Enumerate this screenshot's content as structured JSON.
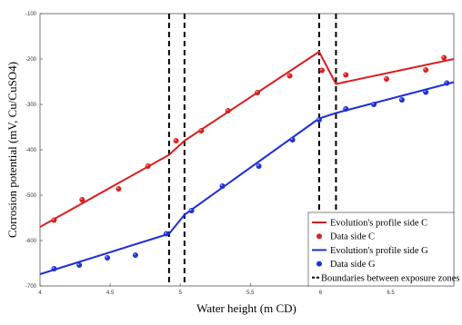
{
  "chart_data": {
    "type": "line",
    "xlabel": "Water height (m CD)",
    "ylabel": "Corrosion potential (mV, Cu/CuSO4)",
    "xlim": [
      4,
      6.95
    ],
    "ylim": [
      -700,
      -100
    ],
    "xticks": [
      4,
      4.5,
      5,
      5.5,
      6,
      6.5
    ],
    "xtick_labels": [
      "4",
      "4.5",
      "5",
      "5.5",
      "6",
      "6.5"
    ],
    "yticks": [
      -100,
      -200,
      -300,
      -400,
      -500,
      -600,
      -700
    ],
    "ytick_labels": [
      "-100",
      "-200",
      "-300",
      "-400",
      "-500",
      "-600",
      "-700"
    ],
    "boundaries": [
      4.92,
      5.03,
      5.99,
      6.11
    ],
    "legend_position": "bottom-right",
    "series": [
      {
        "name": "Evolution's profile side C",
        "kind": "line",
        "color": "#d91f1f",
        "segments": [
          [
            [
              4,
              -570
            ],
            [
              4.92,
              -411
            ]
          ],
          [
            [
              4.92,
              -411
            ],
            [
              5.03,
              -380
            ],
            [
              5.99,
              -184
            ],
            [
              6.11,
              -255
            ],
            [
              6.95,
              -200
            ]
          ]
        ]
      },
      {
        "name": "Data side C",
        "kind": "points",
        "color": "#d91f1f",
        "x": [
          4.1,
          4.3,
          4.56,
          4.77,
          4.97,
          5.15,
          5.34,
          5.55,
          5.78,
          6.01,
          6.18,
          6.47,
          6.75,
          6.88
        ],
        "y": [
          -555,
          -510,
          -486,
          -436,
          -380,
          -358,
          -314,
          -274,
          -237,
          -225,
          -235,
          -244,
          -224,
          -197
        ]
      },
      {
        "name": "Evolution's profile side G",
        "kind": "line",
        "color": "#1f2fd6",
        "segments": [
          [
            [
              4,
              -674
            ],
            [
              4.92,
              -585
            ]
          ],
          [
            [
              4.92,
              -585
            ],
            [
              5.03,
              -543
            ],
            [
              5.99,
              -331
            ],
            [
              6.11,
              -319
            ],
            [
              6.95,
              -251
            ]
          ]
        ]
      },
      {
        "name": "Data side G",
        "kind": "points",
        "color": "#1f2fd6",
        "x": [
          4.1,
          4.28,
          4.48,
          4.68,
          4.9,
          5.08,
          5.3,
          5.56,
          5.8,
          5.99,
          6.18,
          6.38,
          6.58,
          6.75,
          6.9
        ],
        "y": [
          -662,
          -654,
          -638,
          -632,
          -585,
          -534,
          -480,
          -436,
          -378,
          -334,
          -310,
          -300,
          -290,
          -273,
          -253
        ]
      },
      {
        "name": "Boundaries between exposure zones",
        "kind": "vline",
        "color": "#000000",
        "x": [
          4.92,
          5.03,
          5.99,
          6.11
        ]
      }
    ]
  }
}
